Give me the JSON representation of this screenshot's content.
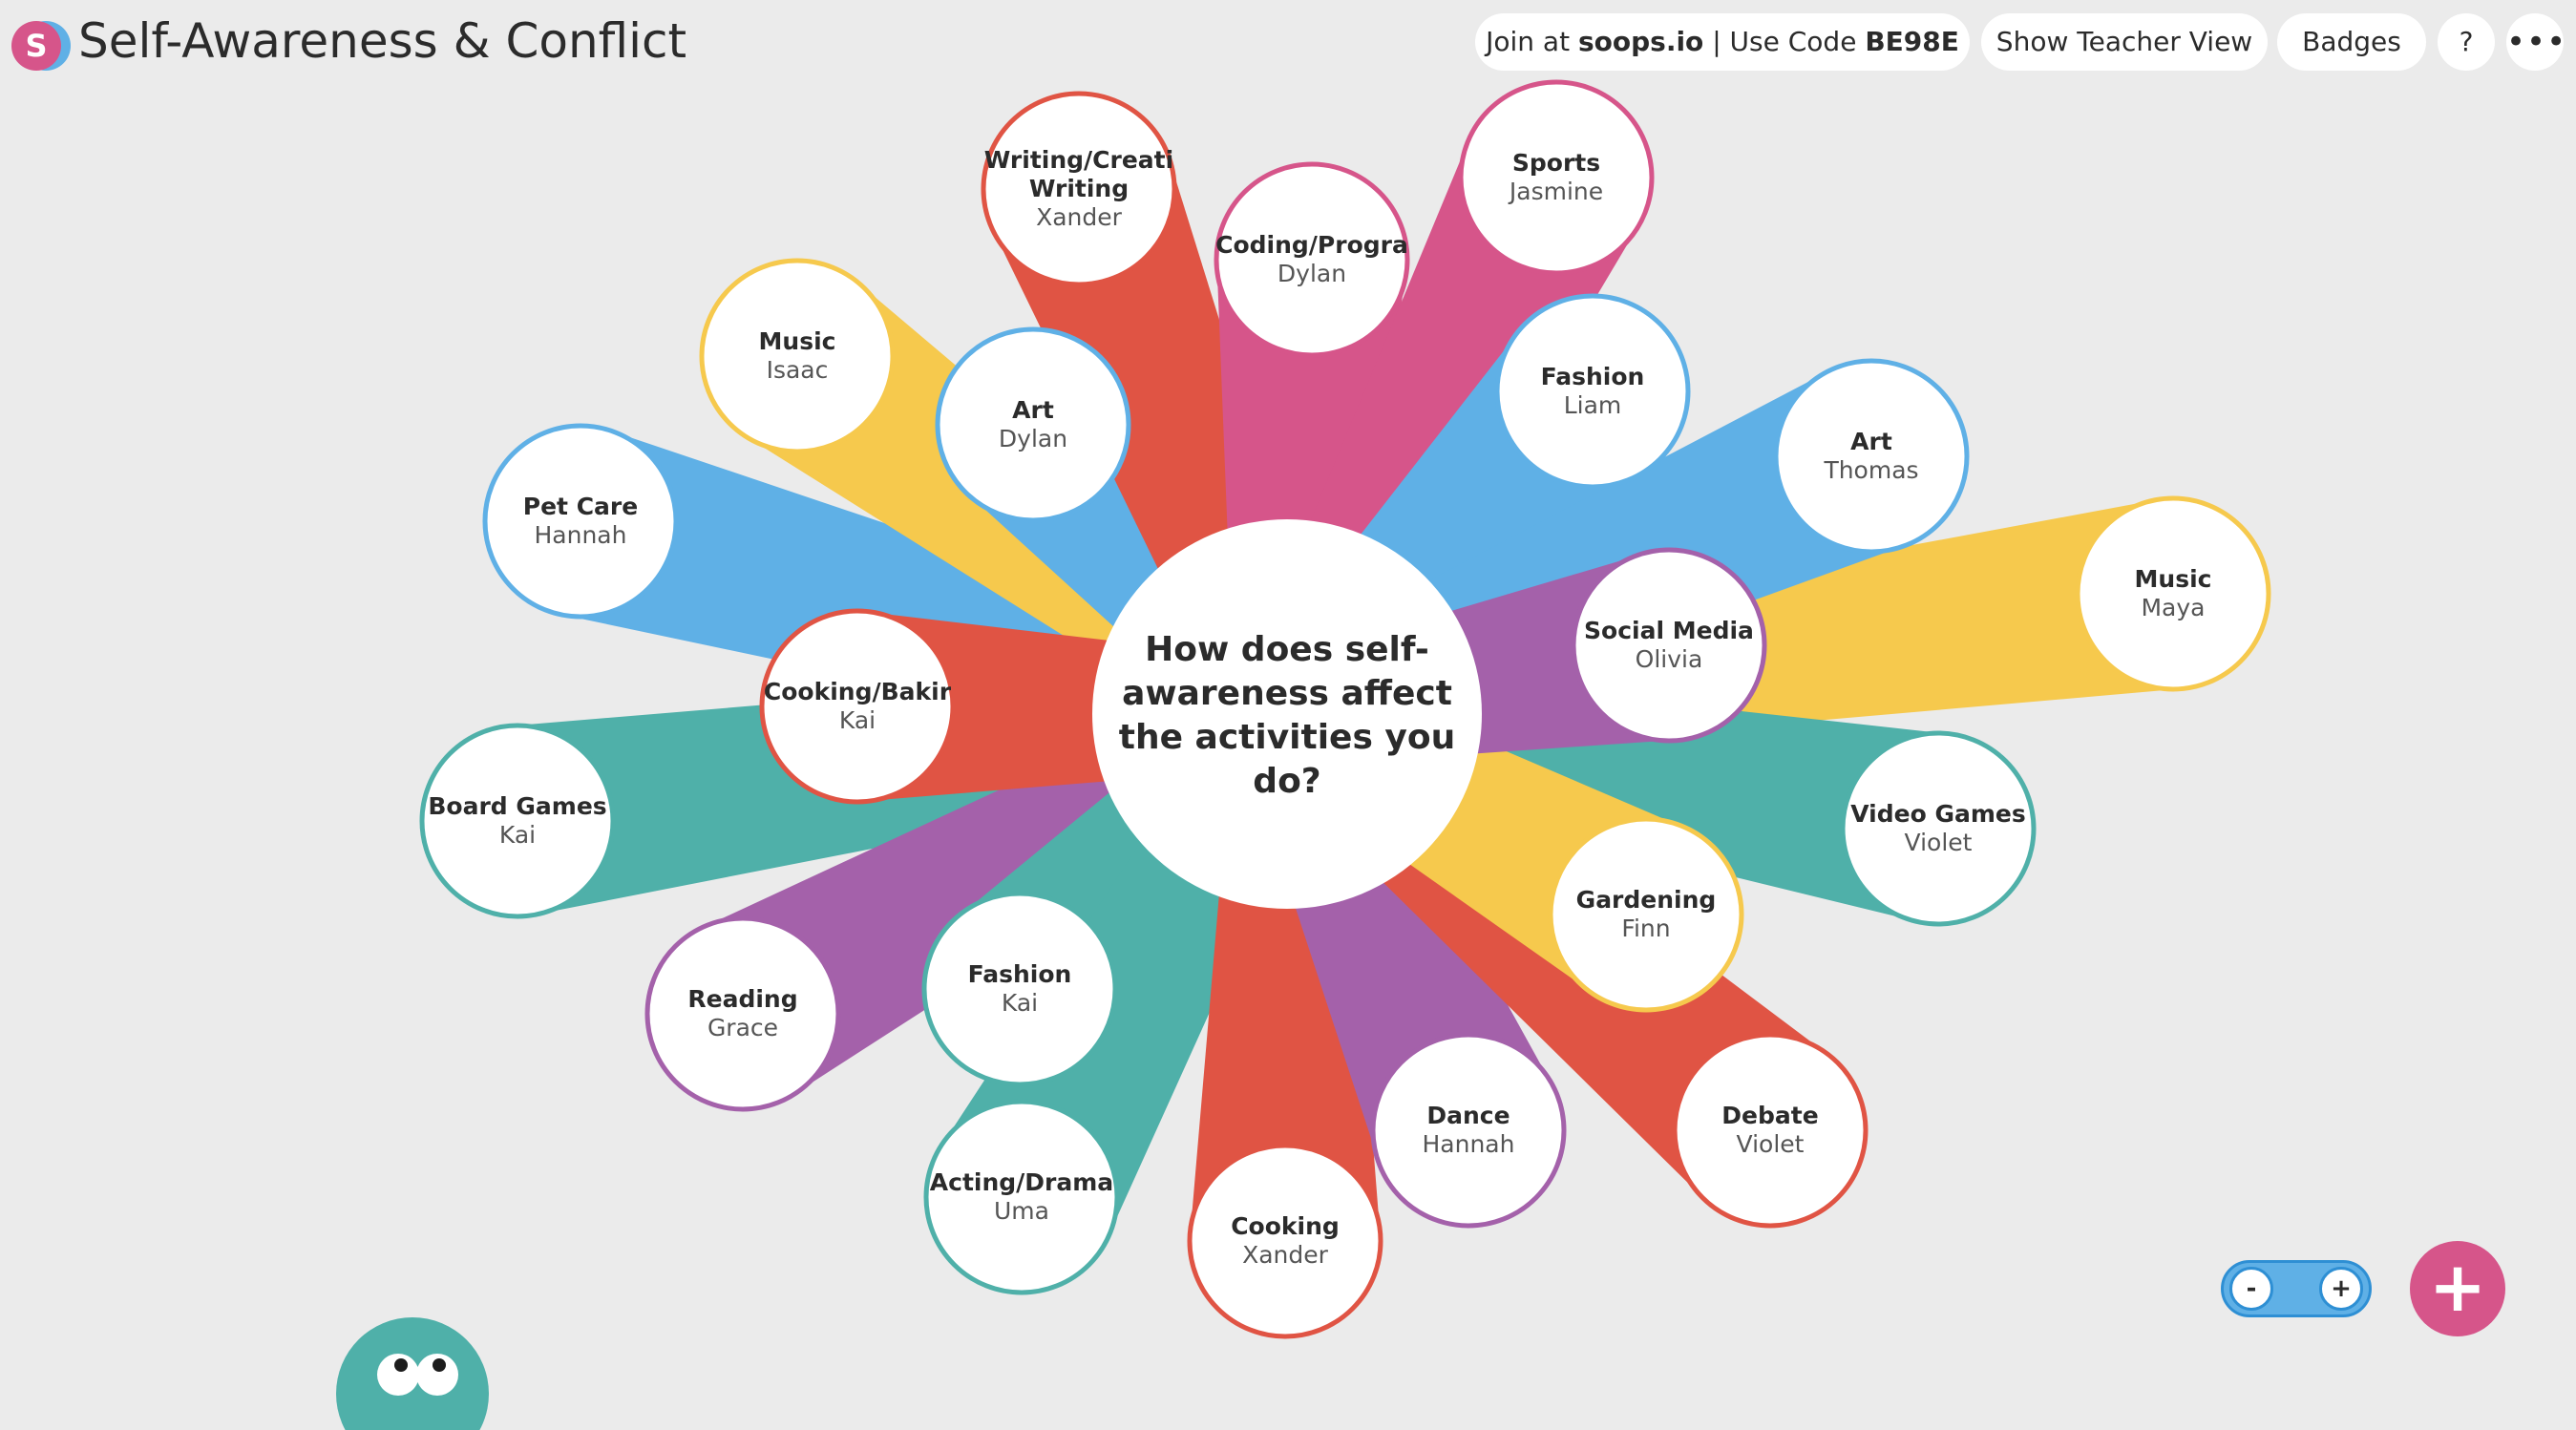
{
  "app": {
    "title": "Self-Awareness & Conflict",
    "logo_letter": "S"
  },
  "header": {
    "join_prefix": "Join at ",
    "join_site": "soops.io",
    "join_mid": " | Use Code ",
    "join_code": "BE98E",
    "teacher_view_label": "Show Teacher View",
    "badges_label": "Badges",
    "help_label": "?",
    "more_label": "•••"
  },
  "center": {
    "question_lines": [
      "How does self-",
      "awareness affect",
      "the activities you",
      "do?"
    ]
  },
  "colors": {
    "red": "#e05444",
    "pink": "#d6558a",
    "yellow": "#f6c94d",
    "blue": "#5fb0e6",
    "purple": "#a461aa",
    "teal": "#4fb0a9",
    "background": "#ebebeb",
    "bubble": "#ffffff"
  },
  "responses": [
    {
      "topic": "Writing/Creati",
      "topic2": "Writing",
      "name": "Xander",
      "color": "red"
    },
    {
      "topic": "Coding/Progra",
      "name": "Dylan",
      "color": "pink"
    },
    {
      "topic": "Sports",
      "name": "Jasmine",
      "color": "pink"
    },
    {
      "topic": "Music",
      "name": "Isaac",
      "color": "yellow"
    },
    {
      "topic": "Art",
      "name": "Dylan",
      "color": "blue"
    },
    {
      "topic": "Fashion",
      "name": "Liam",
      "color": "blue"
    },
    {
      "topic": "Art",
      "name": "Thomas",
      "color": "blue"
    },
    {
      "topic": "Pet Care",
      "name": "Hannah",
      "color": "blue"
    },
    {
      "topic": "Music",
      "name": "Maya",
      "color": "yellow"
    },
    {
      "topic": "Social Media",
      "name": "Olivia",
      "color": "purple"
    },
    {
      "topic": "Cooking/Bakir",
      "name": "Kai",
      "color": "red"
    },
    {
      "topic": "Board Games",
      "name": "Kai",
      "color": "teal"
    },
    {
      "topic": "Video Games",
      "name": "Violet",
      "color": "teal"
    },
    {
      "topic": "Gardening",
      "name": "Finn",
      "color": "yellow"
    },
    {
      "topic": "Reading",
      "name": "Grace",
      "color": "purple"
    },
    {
      "topic": "Fashion",
      "name": "Kai",
      "color": "teal"
    },
    {
      "topic": "Dance",
      "name": "Hannah",
      "color": "purple"
    },
    {
      "topic": "Debate",
      "name": "Violet",
      "color": "red"
    },
    {
      "topic": "Acting/Drama",
      "name": "Uma",
      "color": "teal"
    },
    {
      "topic": "Cooking",
      "name": "Xander",
      "color": "red"
    }
  ],
  "zoom": {
    "out_label": "-",
    "in_label": "+"
  },
  "add_button_label": "+"
}
